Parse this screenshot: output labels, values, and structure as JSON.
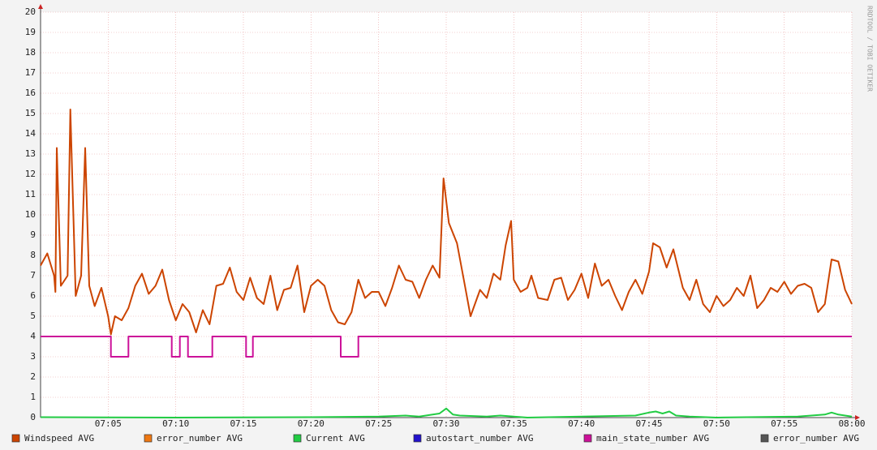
{
  "chart_data": {
    "type": "line",
    "watermark": "RRDTOOL / TOBI OETIKER",
    "xlim": [
      0,
      60
    ],
    "xticks": [
      {
        "value": 5,
        "label": "07:05"
      },
      {
        "value": 10,
        "label": "07:10"
      },
      {
        "value": 15,
        "label": "07:15"
      },
      {
        "value": 20,
        "label": "07:20"
      },
      {
        "value": 25,
        "label": "07:25"
      },
      {
        "value": 30,
        "label": "07:30"
      },
      {
        "value": 35,
        "label": "07:35"
      },
      {
        "value": 40,
        "label": "07:40"
      },
      {
        "value": 45,
        "label": "07:45"
      },
      {
        "value": 50,
        "label": "07:50"
      },
      {
        "value": 55,
        "label": "07:55"
      },
      {
        "value": 60,
        "label": "08:00"
      }
    ],
    "ylim": [
      0,
      20
    ],
    "yticks": [
      0,
      1,
      2,
      3,
      4,
      5,
      6,
      7,
      8,
      9,
      10,
      11,
      12,
      13,
      14,
      15,
      16,
      17,
      18,
      19,
      20
    ],
    "grid": true,
    "series": [
      {
        "name": "Windspeed AVG",
        "color": "#cc4400",
        "x": [
          0,
          0.5,
          1,
          1.1,
          1.2,
          1.5,
          2,
          2.2,
          2.6,
          3,
          3.3,
          3.6,
          4,
          4.5,
          5,
          5.2,
          5.5,
          6,
          6.5,
          7,
          7.5,
          8,
          8.5,
          9,
          9.5,
          10,
          10.5,
          11,
          11.5,
          12,
          12.5,
          13,
          13.5,
          14,
          14.5,
          15,
          15.5,
          16,
          16.5,
          17,
          17.5,
          18,
          18.5,
          19,
          19.5,
          20,
          20.5,
          21,
          21.5,
          22,
          22.5,
          23,
          23.5,
          24,
          24.5,
          25,
          25.5,
          26,
          26.5,
          27,
          27.5,
          28,
          28.5,
          29,
          29.5,
          29.8,
          30.2,
          30.8,
          31.3,
          31.8,
          32.5,
          33,
          33.5,
          34,
          34.4,
          34.8,
          35,
          35.5,
          36,
          36.3,
          36.8,
          37.5,
          38,
          38.5,
          39,
          39.5,
          40,
          40.5,
          41,
          41.5,
          42,
          42.5,
          43,
          43.5,
          44,
          44.5,
          45,
          45.3,
          45.8,
          46.3,
          46.8,
          47.5,
          48,
          48.5,
          49,
          49.5,
          50,
          50.5,
          51,
          51.5,
          52,
          52.5,
          53,
          53.5,
          54,
          54.5,
          55,
          55.5,
          56,
          56.5,
          57,
          57.5,
          58,
          58.5,
          59,
          59.5,
          60
        ],
        "values": [
          7.5,
          8.1,
          7.0,
          6.2,
          13.3,
          6.5,
          7.0,
          15.2,
          6.0,
          7.0,
          13.3,
          6.5,
          5.5,
          6.4,
          5.0,
          4.1,
          5.0,
          4.8,
          5.4,
          6.5,
          7.1,
          6.1,
          6.5,
          7.3,
          5.8,
          4.8,
          5.6,
          5.2,
          4.2,
          5.3,
          4.6,
          6.5,
          6.6,
          7.4,
          6.2,
          5.8,
          6.9,
          5.9,
          5.6,
          7.0,
          5.3,
          6.3,
          6.4,
          7.5,
          5.2,
          6.5,
          6.8,
          6.5,
          5.3,
          4.7,
          4.6,
          5.2,
          6.8,
          5.9,
          6.2,
          6.2,
          5.5,
          6.4,
          7.5,
          6.8,
          6.7,
          5.9,
          6.8,
          7.5,
          6.9,
          11.8,
          9.6,
          8.6,
          6.8,
          5.0,
          6.3,
          5.9,
          7.1,
          6.8,
          8.5,
          9.7,
          6.8,
          6.2,
          6.4,
          7.0,
          5.9,
          5.8,
          6.8,
          6.9,
          5.8,
          6.3,
          7.1,
          5.9,
          7.6,
          6.5,
          6.8,
          6.0,
          5.3,
          6.2,
          6.8,
          6.1,
          7.2,
          8.6,
          8.4,
          7.4,
          8.3,
          6.4,
          5.8,
          6.8,
          5.6,
          5.2,
          6.0,
          5.5,
          5.8,
          6.4,
          6.0,
          7.0,
          5.4,
          5.8,
          6.4,
          6.2,
          6.7,
          6.1,
          6.5,
          6.6,
          6.4,
          5.2,
          5.6,
          7.8,
          7.7,
          6.3,
          5.6
        ]
      },
      {
        "name": "error_number AVG",
        "color": "#ee7711"
      },
      {
        "name": "Current AVG",
        "color": "#22cc44",
        "x": [
          0,
          10,
          20,
          25,
          27,
          28,
          29,
          29.5,
          30,
          30.5,
          31,
          33,
          34,
          35,
          36,
          40,
          44,
          45,
          45.5,
          46,
          46.5,
          47,
          48,
          50,
          56,
          58,
          58.5,
          59,
          60
        ],
        "values": [
          0.02,
          0,
          0.02,
          0.05,
          0.1,
          0.05,
          0.15,
          0.2,
          0.45,
          0.15,
          0.1,
          0.05,
          0.1,
          0.05,
          0,
          0.05,
          0.1,
          0.25,
          0.3,
          0.2,
          0.3,
          0.1,
          0.05,
          0,
          0.05,
          0.15,
          0.25,
          0.15,
          0.05
        ]
      },
      {
        "name": "autostart_number AVG",
        "color": "#2211cc"
      },
      {
        "name": "main_state_number AVG",
        "color": "#cc1199",
        "x": [
          0,
          5.2,
          5.2,
          6.5,
          6.5,
          9.7,
          9.7,
          10.3,
          10.3,
          10.9,
          10.9,
          12.7,
          12.7,
          15.2,
          15.2,
          15.7,
          15.7,
          22.2,
          22.2,
          23.5,
          23.5,
          60
        ],
        "values": [
          4,
          4,
          3,
          3,
          4,
          4,
          3,
          3,
          4,
          4,
          3,
          3,
          4,
          4,
          3,
          3,
          4,
          4,
          3,
          3,
          4,
          4
        ]
      },
      {
        "name": "error_number AVG",
        "color": "#555555"
      }
    ]
  }
}
